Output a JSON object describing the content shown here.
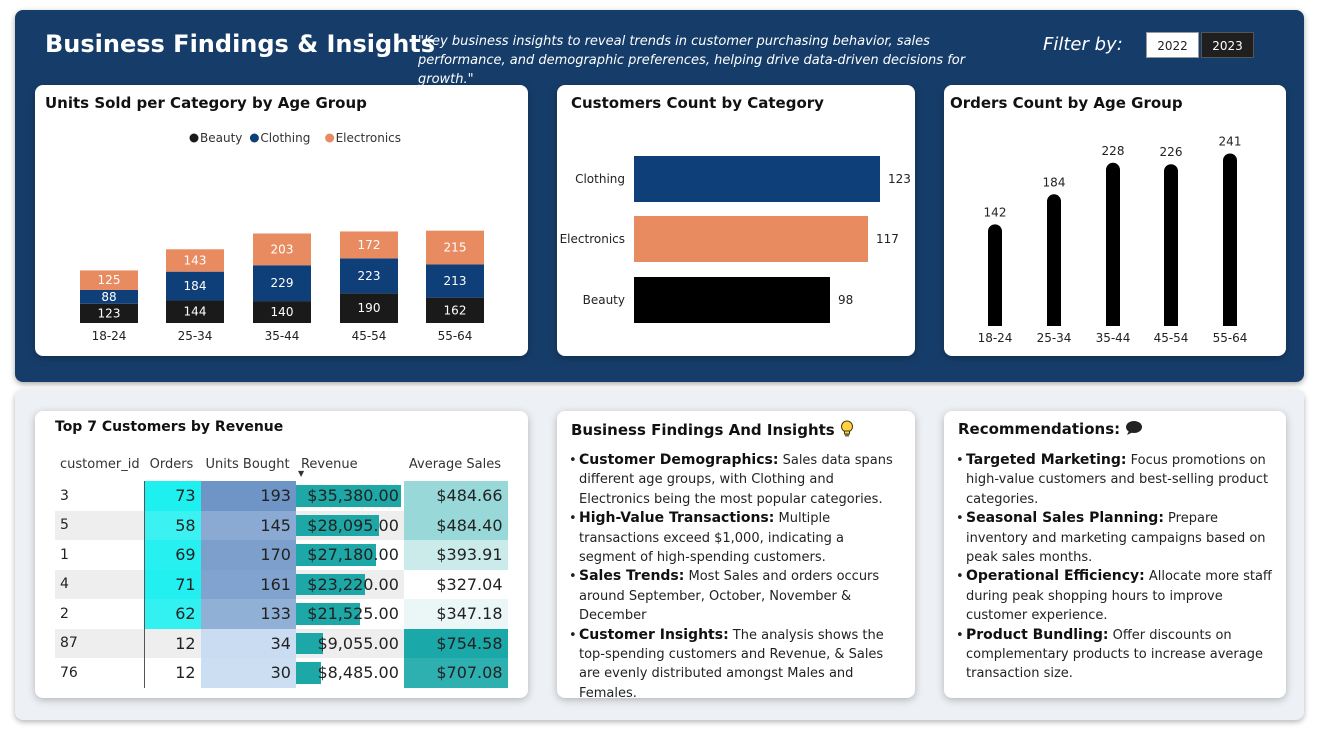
{
  "header": {
    "title": "Business Findings & Insights",
    "subtitle": "\"Key business insights to reveal trends in customer purchasing behavior, sales performance, and demographic preferences, helping drive data-driven decisions for growth.\"",
    "filter_label": "Filter by:",
    "filter_options": [
      "2022",
      "2023"
    ]
  },
  "colors": {
    "beauty": "#1a1a1a",
    "clothing": "#0f3f78",
    "electronics": "#e98b61",
    "banner": "#163d6a"
  },
  "chart_data": [
    {
      "type": "bar",
      "title": "Units Sold per Category by Age Group",
      "stacked": true,
      "categories": [
        "18-24",
        "25-34",
        "35-44",
        "45-54",
        "55-64"
      ],
      "series": [
        {
          "name": "Beauty",
          "values": [
            123,
            144,
            140,
            190,
            162
          ]
        },
        {
          "name": "Clothing",
          "values": [
            88,
            184,
            229,
            223,
            213
          ]
        },
        {
          "name": "Electronics",
          "values": [
            125,
            143,
            203,
            172,
            215
          ]
        }
      ],
      "legend": "top-center"
    },
    {
      "type": "bar",
      "orientation": "horizontal",
      "title": "Customers Count by Category",
      "categories": [
        "Clothing",
        "Electronics",
        "Beauty"
      ],
      "values": [
        123,
        117,
        98
      ]
    },
    {
      "type": "bar",
      "title": "Orders Count by Age Group",
      "categories": [
        "18-24",
        "25-34",
        "35-44",
        "45-54",
        "55-64"
      ],
      "values": [
        142,
        184,
        228,
        226,
        241
      ]
    }
  ],
  "table": {
    "title": "Top 7 Customers by Revenue",
    "columns": [
      "customer_id",
      "Orders",
      "Units Bought",
      "Revenue",
      "Average Sales"
    ],
    "rows": [
      {
        "customer_id": "3",
        "orders": "73",
        "units": "193",
        "revenue": "$35,380.00",
        "avg": "$484.66"
      },
      {
        "customer_id": "5",
        "orders": "58",
        "units": "145",
        "revenue": "$28,095.00",
        "avg": "$484.40"
      },
      {
        "customer_id": "1",
        "orders": "69",
        "units": "170",
        "revenue": "$27,180.00",
        "avg": "$393.91"
      },
      {
        "customer_id": "4",
        "orders": "71",
        "units": "161",
        "revenue": "$23,220.00",
        "avg": "$327.04"
      },
      {
        "customer_id": "2",
        "orders": "62",
        "units": "133",
        "revenue": "$21,525.00",
        "avg": "$347.18"
      },
      {
        "customer_id": "87",
        "orders": "12",
        "units": "34",
        "revenue": "$9,055.00",
        "avg": "$754.58"
      },
      {
        "customer_id": "76",
        "orders": "12",
        "units": "30",
        "revenue": "$8,485.00",
        "avg": "$707.08"
      }
    ]
  },
  "findings": {
    "title": "Business Findings And Insights",
    "icon": "lightbulb-icon",
    "items": [
      {
        "head": "Customer Demographics:",
        "text": " Sales data spans different age groups, with Clothing and Electronics being the most popular categories."
      },
      {
        "head": "High-Value Transactions:",
        "text": " Multiple transactions exceed $1,000, indicating a segment of high-spending customers."
      },
      {
        "head": "Sales Trends:",
        "text": " Most Sales and orders occurs around September, October, November & December"
      },
      {
        "head": "Customer Insights:",
        "text": " The analysis shows the top-spending customers and Revenue, & Sales are evenly distributed amongst Males and Females."
      }
    ]
  },
  "recommendations": {
    "title": "Recommendations:",
    "icon": "speech-bubble-icon",
    "items": [
      {
        "head": "Targeted Marketing:",
        "text": " Focus promotions on high-value customers and best-selling product categories."
      },
      {
        "head": "Seasonal Sales Planning:",
        "text": " Prepare inventory and marketing campaigns based on peak sales months."
      },
      {
        "head": "Operational Efficiency:",
        "text": " Allocate more staff during peak shopping hours to improve customer experience."
      },
      {
        "head": "Product Bundling:",
        "text": " Offer discounts on complementary products to increase average transaction size."
      }
    ]
  }
}
